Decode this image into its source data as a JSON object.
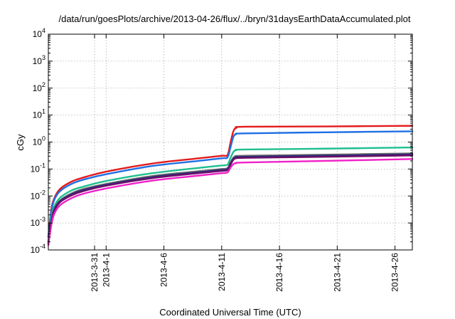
{
  "chart_data": {
    "type": "line",
    "title": "/data/run/goesPlots/archive/2013-04-26/flux/../bryn/31daysEarthDataAccumulated.plot",
    "xlabel": "Coordinated Universal Time (UTC)",
    "ylabel": "cGy",
    "yscale": "log",
    "ylim": [
      0.0001,
      10000
    ],
    "xlim": [
      "2013-03-27",
      "2013-04-27 12:00"
    ],
    "grid": true,
    "y_ticks": [
      {
        "base": "10",
        "exp": "-4",
        "value": 0.0001
      },
      {
        "base": "10",
        "exp": "-3",
        "value": 0.001
      },
      {
        "base": "10",
        "exp": "-2",
        "value": 0.01
      },
      {
        "base": "10",
        "exp": "-1",
        "value": 0.1
      },
      {
        "base": "10",
        "exp": "0",
        "value": 1
      },
      {
        "base": "10",
        "exp": "1",
        "value": 10
      },
      {
        "base": "10",
        "exp": "2",
        "value": 100
      },
      {
        "base": "10",
        "exp": "3",
        "value": 1000
      },
      {
        "base": "10",
        "exp": "4",
        "value": 10000
      }
    ],
    "x_ticks": [
      "2013-3-31",
      "2013-4-1",
      "2013-4-6",
      "2013-4-11",
      "2013-4-16",
      "2013-4-21",
      "2013-4-26"
    ],
    "series": [
      {
        "color": "#e41a1c",
        "x": [
          "2013-03-27 00:00",
          "2013-03-27 06:00",
          "2013-03-27 12:00",
          "2013-03-28 00:00",
          "2013-03-29 00:00",
          "2013-03-30 00:00",
          "2013-04-01 00:00",
          "2013-04-05 00:00",
          "2013-04-09 00:00",
          "2013-04-11 00:00",
          "2013-04-11 12:00",
          "2013-04-11 18:00",
          "2013-04-12 00:00",
          "2013-04-12 06:00",
          "2013-04-13 00:00",
          "2013-04-20 00:00",
          "2013-04-27 12:00"
        ],
        "y": [
          0.0003,
          0.003,
          0.008,
          0.018,
          0.034,
          0.048,
          0.08,
          0.16,
          0.25,
          0.31,
          0.33,
          0.9,
          2.4,
          3.3,
          3.7,
          3.8,
          4.0
        ]
      },
      {
        "color": "#1f6fe5",
        "x": [
          "2013-03-27 00:00",
          "2013-03-27 06:00",
          "2013-03-27 12:00",
          "2013-03-28 00:00",
          "2013-03-29 00:00",
          "2013-03-30 00:00",
          "2013-04-01 00:00",
          "2013-04-05 00:00",
          "2013-04-09 00:00",
          "2013-04-11 00:00",
          "2013-04-11 12:00",
          "2013-04-11 18:00",
          "2013-04-12 00:00",
          "2013-04-12 06:00",
          "2013-04-13 00:00",
          "2013-04-20 00:00",
          "2013-04-27 12:00"
        ],
        "y": [
          0.0003,
          0.0025,
          0.007,
          0.015,
          0.028,
          0.04,
          0.064,
          0.13,
          0.2,
          0.25,
          0.27,
          0.6,
          1.5,
          1.95,
          2.1,
          2.3,
          2.5
        ]
      },
      {
        "color": "#1fbf8f",
        "x": [
          "2013-03-27 00:00",
          "2013-03-27 06:00",
          "2013-03-27 12:00",
          "2013-03-28 00:00",
          "2013-03-29 00:00",
          "2013-03-30 00:00",
          "2013-04-01 00:00",
          "2013-04-05 00:00",
          "2013-04-09 00:00",
          "2013-04-11 00:00",
          "2013-04-11 12:00",
          "2013-04-11 18:00",
          "2013-04-12 00:00",
          "2013-04-12 06:00",
          "2013-04-13 00:00",
          "2013-04-20 00:00",
          "2013-04-27 12:00"
        ],
        "y": [
          0.0002,
          0.0015,
          0.004,
          0.0085,
          0.016,
          0.022,
          0.036,
          0.07,
          0.11,
          0.135,
          0.145,
          0.25,
          0.42,
          0.5,
          0.53,
          0.57,
          0.63
        ]
      },
      {
        "color": "#6b6b6b",
        "x": [
          "2013-03-27 00:00",
          "2013-03-27 06:00",
          "2013-03-27 12:00",
          "2013-03-28 00:00",
          "2013-03-29 00:00",
          "2013-03-30 00:00",
          "2013-04-01 00:00",
          "2013-04-05 00:00",
          "2013-04-09 00:00",
          "2013-04-11 00:00",
          "2013-04-11 12:00",
          "2013-04-11 18:00",
          "2013-04-12 00:00",
          "2013-04-12 06:00",
          "2013-04-13 00:00",
          "2013-04-20 00:00",
          "2013-04-27 12:00"
        ],
        "y": [
          0.0002,
          0.0012,
          0.0032,
          0.0068,
          0.0125,
          0.018,
          0.028,
          0.055,
          0.083,
          0.1,
          0.108,
          0.17,
          0.26,
          0.3,
          0.31,
          0.34,
          0.38
        ]
      },
      {
        "color": "#2a2a7a",
        "x": [
          "2013-03-27 00:00",
          "2013-03-27 06:00",
          "2013-03-27 12:00",
          "2013-03-28 00:00",
          "2013-03-29 00:00",
          "2013-03-30 00:00",
          "2013-04-01 00:00",
          "2013-04-05 00:00",
          "2013-04-09 00:00",
          "2013-04-11 00:00",
          "2013-04-11 12:00",
          "2013-04-11 18:00",
          "2013-04-12 00:00",
          "2013-04-12 06:00",
          "2013-04-13 00:00",
          "2013-04-20 00:00",
          "2013-04-27 12:00"
        ],
        "y": [
          0.00018,
          0.0011,
          0.003,
          0.0063,
          0.0115,
          0.0165,
          0.026,
          0.05,
          0.076,
          0.092,
          0.099,
          0.155,
          0.235,
          0.27,
          0.285,
          0.31,
          0.35
        ]
      },
      {
        "color": "#6a0f6a",
        "x": [
          "2013-03-27 00:00",
          "2013-03-27 06:00",
          "2013-03-27 12:00",
          "2013-03-28 00:00",
          "2013-03-29 00:00",
          "2013-03-30 00:00",
          "2013-04-01 00:00",
          "2013-04-05 00:00",
          "2013-04-09 00:00",
          "2013-04-11 00:00",
          "2013-04-11 12:00",
          "2013-04-11 18:00",
          "2013-04-12 00:00",
          "2013-04-12 06:00",
          "2013-04-13 00:00",
          "2013-04-20 00:00",
          "2013-04-27 12:00"
        ],
        "y": [
          0.00017,
          0.001,
          0.0027,
          0.0058,
          0.0105,
          0.015,
          0.024,
          0.046,
          0.07,
          0.085,
          0.091,
          0.14,
          0.215,
          0.25,
          0.26,
          0.285,
          0.32
        ]
      },
      {
        "color": "#f020c8",
        "x": [
          "2013-03-27 00:00",
          "2013-03-27 06:00",
          "2013-03-27 12:00",
          "2013-03-28 00:00",
          "2013-03-29 00:00",
          "2013-03-30 00:00",
          "2013-04-01 00:00",
          "2013-04-05 00:00",
          "2013-04-09 00:00",
          "2013-04-11 00:00",
          "2013-04-11 12:00",
          "2013-04-11 18:00",
          "2013-04-12 00:00",
          "2013-04-12 06:00",
          "2013-04-13 00:00",
          "2013-04-20 00:00",
          "2013-04-27 12:00"
        ],
        "y": [
          0.00015,
          0.0008,
          0.0021,
          0.0045,
          0.0083,
          0.012,
          0.019,
          0.037,
          0.057,
          0.07,
          0.075,
          0.11,
          0.15,
          0.165,
          0.175,
          0.2,
          0.235
        ]
      }
    ]
  }
}
